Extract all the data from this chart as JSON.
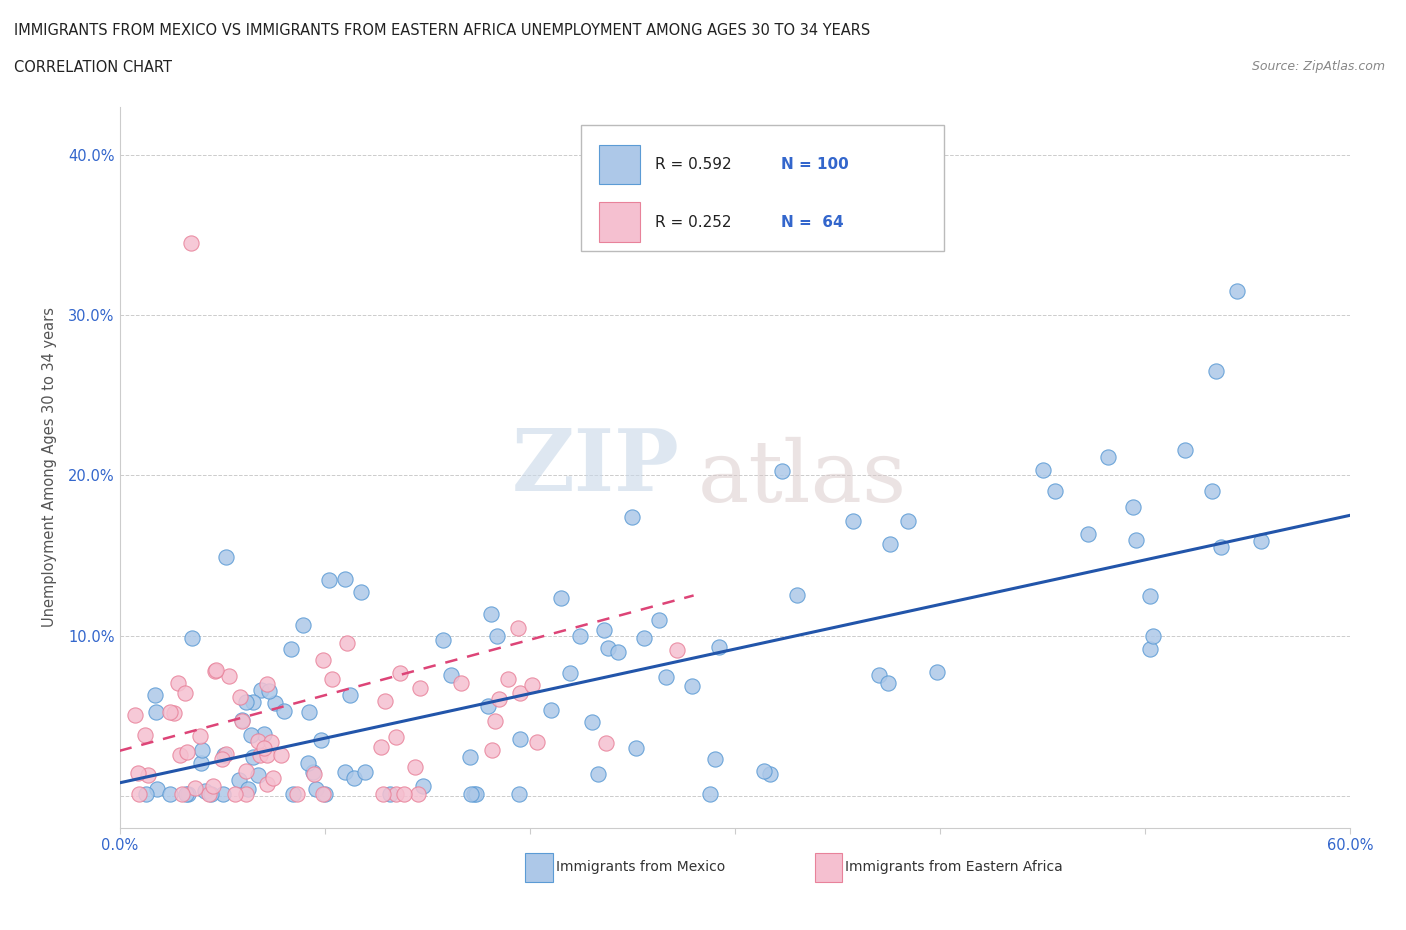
{
  "title_line1": "IMMIGRANTS FROM MEXICO VS IMMIGRANTS FROM EASTERN AFRICA UNEMPLOYMENT AMONG AGES 30 TO 34 YEARS",
  "title_line2": "CORRELATION CHART",
  "source_text": "Source: ZipAtlas.com",
  "ylabel": "Unemployment Among Ages 30 to 34 years",
  "xlim": [
    0.0,
    0.6
  ],
  "ylim": [
    -0.02,
    0.43
  ],
  "xtick_positions": [
    0.0,
    0.1,
    0.2,
    0.3,
    0.4,
    0.5,
    0.6
  ],
  "xticklabels": [
    "0.0%",
    "",
    "",
    "",
    "",
    "",
    "60.0%"
  ],
  "ytick_positions": [
    0.0,
    0.1,
    0.2,
    0.3,
    0.4
  ],
  "yticklabels": [
    "",
    "10.0%",
    "20.0%",
    "30.0%",
    "40.0%"
  ],
  "mexico_color": "#adc8e8",
  "mexico_edge_color": "#5b9bd5",
  "eastern_africa_color": "#f5c0d0",
  "eastern_africa_edge_color": "#e8829a",
  "mexico_line_color": "#2255aa",
  "eastern_africa_line_color": "#dd4477",
  "R_mexico": 0.592,
  "N_mexico": 100,
  "R_eastern_africa": 0.252,
  "N_eastern_africa": 64,
  "watermark_zip": "ZIP",
  "watermark_atlas": "atlas",
  "background_color": "#ffffff",
  "grid_color": "#cccccc",
  "axis_color": "#cccccc",
  "title_color": "#222222",
  "tick_color": "#3366cc",
  "ylabel_color": "#555555",
  "legend_box_color": "#dddddd",
  "source_color": "#888888"
}
